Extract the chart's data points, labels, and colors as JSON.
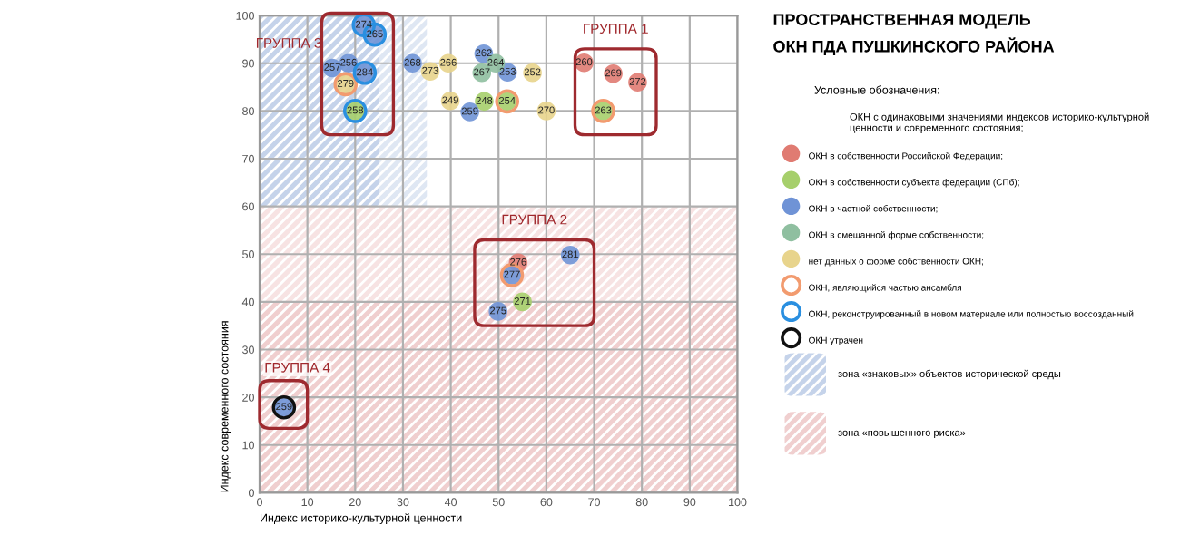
{
  "chart_data": {
    "type": "scatter",
    "title": "ПРОСТРАНСТВЕННАЯ МОДЕЛЬ\nОКН ПДА ПУШКИНСКОГО РАЙОНА",
    "xlabel": "Индекс историко-культурной ценности",
    "ylabel": "Индекс современного состояния",
    "legend_title": "Условные обозначения:",
    "xlim": [
      0,
      100
    ],
    "ylim": [
      0,
      100
    ],
    "xticks": [
      0,
      10,
      20,
      30,
      40,
      50,
      60,
      70,
      80,
      90,
      100
    ],
    "yticks": [
      0,
      10,
      20,
      30,
      40,
      50,
      60,
      70,
      80,
      90,
      100
    ],
    "grid": true,
    "legend": "right",
    "marker": "circle",
    "series": [
      {
        "name": "ОКН в собственности Российской Федерации;",
        "color": "#e07b72",
        "x": [
          67.9,
          74,
          79.1,
          54.1
        ],
        "values": [
          90.1,
          87.8,
          86,
          48.2
        ]
      },
      {
        "name": "ОКН в собственности субъекта федерации (СПб);",
        "color": "#a6cf6b",
        "x": [
          20,
          47,
          51.8,
          71.9,
          55
        ],
        "values": [
          80,
          82,
          82,
          80,
          40
        ]
      },
      {
        "name": "ОКН в частной собственности;",
        "color": "#6f93d6",
        "x": [
          21.8,
          24.1,
          15.2,
          18.6,
          22,
          32,
          46.9,
          51.9,
          44,
          52.8,
          65,
          49.9,
          5.1
        ],
        "values": [
          98,
          96,
          89,
          90,
          88,
          90,
          92,
          88.1,
          79.8,
          45.6,
          49.8,
          38,
          17.9
        ]
      },
      {
        "name": "ОКН в смешанной форме собственности;",
        "color": "#8fbfa0",
        "x": [
          46.5,
          49.4
        ],
        "values": [
          88,
          90
        ]
      },
      {
        "name": "нет данных о форме собственности ОКН;",
        "color": "#e8d48c",
        "x": [
          18,
          35.7,
          39.5,
          57.1,
          39.9,
          60
        ],
        "values": [
          85.6,
          88.3,
          90,
          88,
          82.1,
          80
        ]
      },
      {
        "name": "ОКН, являющийся частью ансамбля",
        "color": "#f29b6f",
        "line_style": "solid",
        "x": [
          18,
          51.8,
          71.9,
          52.8
        ],
        "values": [
          85.6,
          82,
          80,
          45.6
        ]
      },
      {
        "name": "ОКН, реконструированный в новом материале или полностью воссозданный",
        "color": "#2a8fe0",
        "line_style": "solid",
        "x": [
          21.8,
          24.1,
          22,
          20
        ],
        "values": [
          98,
          96,
          88,
          80
        ]
      },
      {
        "name": "ОКН утрачен",
        "color": "#111111",
        "line_style": "solid",
        "x": [
          5.1
        ],
        "values": [
          17.9
        ]
      }
    ],
    "bands": [
      {
        "axis": "x",
        "from": 0,
        "to": 25,
        "color": "#c5d3ea"
      },
      {
        "axis": "x",
        "from": 25,
        "to": 35,
        "color": "#dfe7f3"
      },
      {
        "axis": "y",
        "from": 0,
        "to": 40,
        "color": "#f0cfcf"
      },
      {
        "axis": "y",
        "from": 40,
        "to": 60,
        "color": "#f7e3e3"
      }
    ],
    "annotations": [
      {
        "text": "274",
        "x": 21.8,
        "y": 98
      },
      {
        "text": "265",
        "x": 24.1,
        "y": 96
      },
      {
        "text": "257",
        "x": 15.2,
        "y": 89
      },
      {
        "text": "256",
        "x": 18.6,
        "y": 90
      },
      {
        "text": "284",
        "x": 22,
        "y": 88
      },
      {
        "text": "279",
        "x": 18,
        "y": 85.6
      },
      {
        "text": "258",
        "x": 20,
        "y": 80
      },
      {
        "text": "268",
        "x": 32,
        "y": 90
      },
      {
        "text": "273",
        "x": 35.7,
        "y": 88.3
      },
      {
        "text": "266",
        "x": 39.5,
        "y": 90
      },
      {
        "text": "262",
        "x": 46.9,
        "y": 92
      },
      {
        "text": "267",
        "x": 46.5,
        "y": 88
      },
      {
        "text": "264",
        "x": 49.4,
        "y": 90
      },
      {
        "text": "253",
        "x": 51.9,
        "y": 88.1
      },
      {
        "text": "252",
        "x": 57.1,
        "y": 88
      },
      {
        "text": "249",
        "x": 39.9,
        "y": 82.1
      },
      {
        "text": "248",
        "x": 47,
        "y": 82
      },
      {
        "text": "254",
        "x": 51.8,
        "y": 82
      },
      {
        "text": "259",
        "x": 44,
        "y": 79.8
      },
      {
        "text": "270",
        "x": 60,
        "y": 80
      },
      {
        "text": "260",
        "x": 67.9,
        "y": 90.1
      },
      {
        "text": "269",
        "x": 74,
        "y": 87.8
      },
      {
        "text": "272",
        "x": 79.1,
        "y": 86
      },
      {
        "text": "263",
        "x": 71.9,
        "y": 80
      },
      {
        "text": "276",
        "x": 54.1,
        "y": 48.2
      },
      {
        "text": "277",
        "x": 52.8,
        "y": 45.6
      },
      {
        "text": "281",
        "x": 65,
        "y": 49.8
      },
      {
        "text": "271",
        "x": 55,
        "y": 40
      },
      {
        "text": "275",
        "x": 49.9,
        "y": 38
      },
      {
        "text": "259",
        "x": 5.1,
        "y": 17.9
      },
      "ГРУППА 3",
      "ГРУППА 1",
      "ГРУППА 2",
      "ГРУППА 4",
      "ОКН с одинаковыми значениями индексов историко-культурной ценности и современного состояния;",
      "зона «знаковых» объектов исторической среды",
      "зона «повышенного риска»"
    ]
  }
}
